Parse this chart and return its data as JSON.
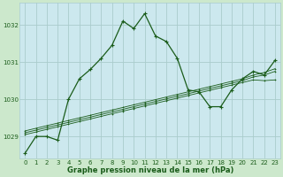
{
  "title": "Graphe pression niveau de la mer (hPa)",
  "bg_color": "#cce8cc",
  "plot_bg_color": "#cce8ee",
  "grid_color": "#aacccc",
  "line_color": "#1a5c1a",
  "xlim": [
    -0.5,
    23.5
  ],
  "ylim": [
    1028.4,
    1032.6
  ],
  "yticks": [
    1029,
    1030,
    1031,
    1032
  ],
  "xticks": [
    0,
    1,
    2,
    3,
    4,
    5,
    6,
    7,
    8,
    9,
    10,
    11,
    12,
    13,
    14,
    15,
    16,
    17,
    18,
    19,
    20,
    21,
    22,
    23
  ],
  "series1_y": [
    1028.55,
    1029.0,
    1029.0,
    1028.9,
    1030.0,
    1030.55,
    1030.8,
    1031.1,
    1031.45,
    1032.1,
    1031.9,
    1032.3,
    1031.7,
    1031.55,
    1031.1,
    1030.25,
    1030.2,
    1029.8,
    1029.8,
    1030.25,
    1030.55,
    1030.75,
    1030.65,
    1031.05
  ],
  "series2_y": [
    1029.05,
    1029.12,
    1029.19,
    1029.26,
    1029.33,
    1029.4,
    1029.47,
    1029.54,
    1029.61,
    1029.68,
    1029.75,
    1029.82,
    1029.89,
    1029.96,
    1030.03,
    1030.1,
    1030.17,
    1030.24,
    1030.31,
    1030.38,
    1030.45,
    1030.52,
    1030.5,
    1030.52
  ],
  "series3_y": [
    1029.1,
    1029.17,
    1029.24,
    1029.31,
    1029.38,
    1029.45,
    1029.52,
    1029.59,
    1029.66,
    1029.73,
    1029.8,
    1029.87,
    1029.94,
    1030.01,
    1030.08,
    1030.15,
    1030.22,
    1030.29,
    1030.36,
    1030.43,
    1030.5,
    1030.6,
    1030.65,
    1030.75
  ],
  "series4_y": [
    1029.15,
    1029.22,
    1029.29,
    1029.36,
    1029.43,
    1029.5,
    1029.57,
    1029.64,
    1029.71,
    1029.78,
    1029.85,
    1029.92,
    1029.99,
    1030.06,
    1030.13,
    1030.2,
    1030.27,
    1030.34,
    1030.41,
    1030.48,
    1030.55,
    1030.65,
    1030.72,
    1030.82
  ],
  "title_fontsize": 6.0,
  "tick_fontsize": 5.0,
  "label_color": "#1a5c1a"
}
